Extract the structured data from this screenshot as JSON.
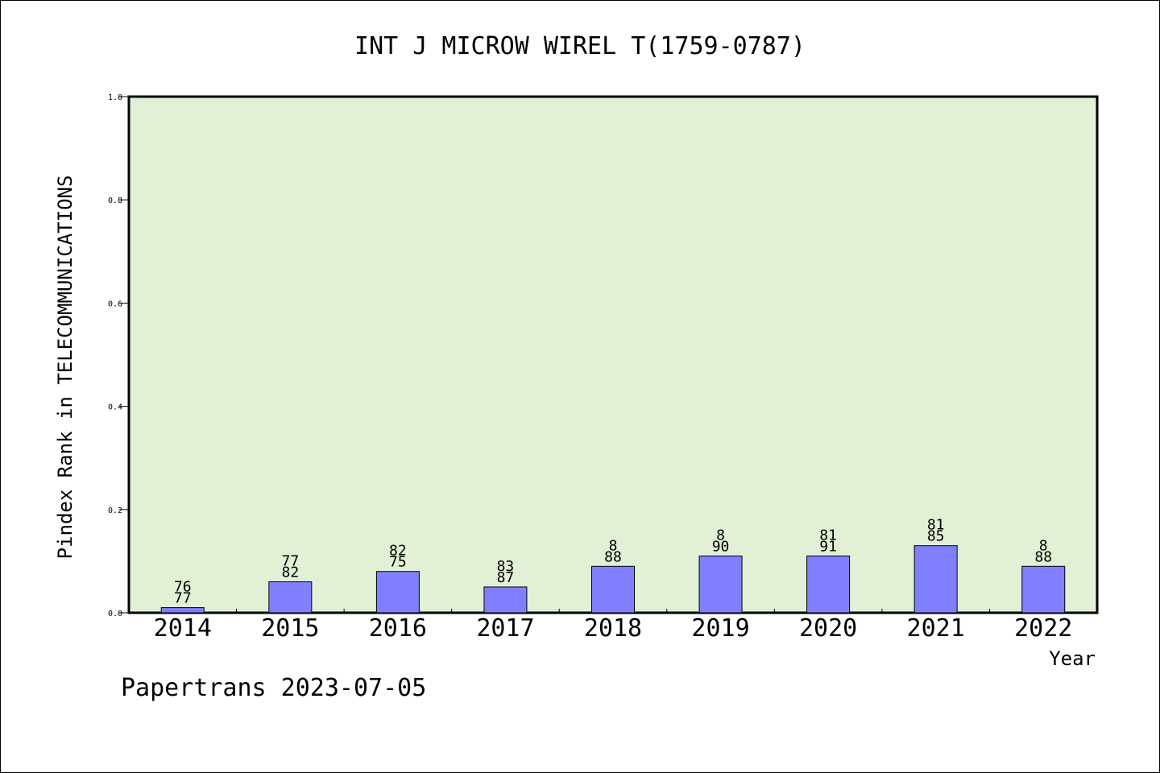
{
  "chart_data": {
    "type": "bar",
    "title": "INT J MICROW WIREL T(1759-0787)",
    "xlabel": "Year",
    "ylabel": "Pindex Rank in TELECOMMUNICATIONS",
    "footer": "Papertrans 2023-07-05",
    "categories": [
      "2014",
      "2015",
      "2016",
      "2017",
      "2018",
      "2019",
      "2020",
      "2021",
      "2022"
    ],
    "values": [
      0.01,
      0.06,
      0.08,
      0.05,
      0.09,
      0.11,
      0.11,
      0.13,
      0.09
    ],
    "label_top": [
      "76",
      "77",
      "82",
      "83",
      "8",
      "8",
      "81",
      "81",
      "8"
    ],
    "label_bottom": [
      "77",
      "82",
      "75",
      "87",
      "88",
      "90",
      "91",
      "85",
      "88"
    ],
    "ylim": [
      0,
      1.0
    ],
    "yticks": [
      "0.0",
      "0.2",
      "0.4",
      "0.6",
      "0.8",
      "1.0"
    ],
    "grid": false,
    "colors": {
      "plot_bg": "#e2f0d6",
      "bar_fill": "#8080ff",
      "bar_stroke": "#000000"
    }
  }
}
